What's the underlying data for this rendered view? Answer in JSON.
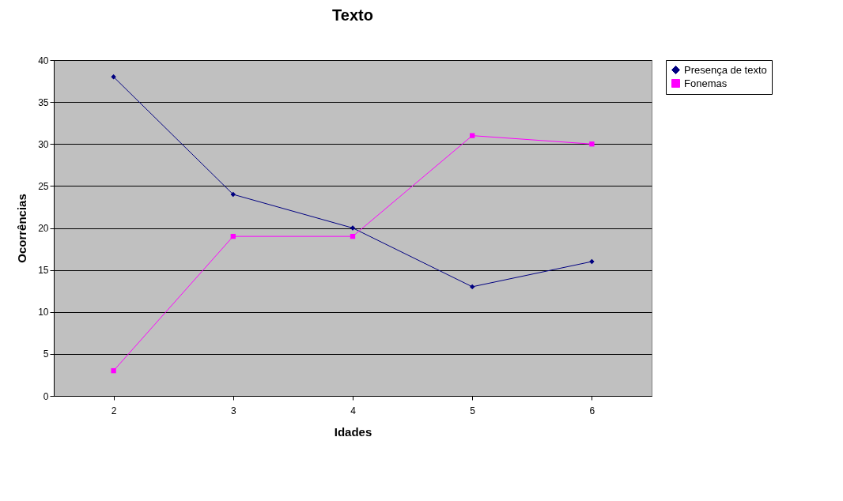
{
  "chart_data": {
    "type": "line",
    "title": "Texto",
    "xlabel": "Idades",
    "ylabel": "Ocorrências",
    "categories": [
      "2",
      "3",
      "4",
      "5",
      "6"
    ],
    "series": [
      {
        "name": "Presença de texto",
        "color": "#000080",
        "marker": "diamond",
        "values": [
          38,
          24,
          20,
          13,
          16
        ]
      },
      {
        "name": "Fonemas",
        "color": "#ff00ff",
        "marker": "square",
        "values": [
          3,
          19,
          19,
          31,
          30
        ]
      }
    ],
    "ylim": [
      0,
      40
    ],
    "yticks": [
      0,
      5,
      10,
      15,
      20,
      25,
      30,
      35,
      40
    ],
    "grid": "y",
    "legend": "right"
  }
}
